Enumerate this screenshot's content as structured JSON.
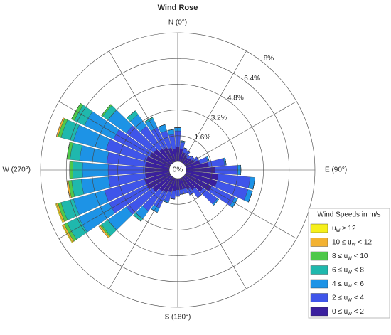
{
  "chart_data": {
    "type": "windrose",
    "title": "Wind Rose",
    "legend_title": "Wind Speeds in m/s",
    "legend_position": "lower right",
    "rlim": [
      0,
      8
    ],
    "rticks": [
      {
        "value": 0,
        "label": "0%"
      },
      {
        "value": 1.6,
        "label": "1.6%"
      },
      {
        "value": 3.2,
        "label": "3.2%"
      },
      {
        "value": 4.8,
        "label": "4.8%"
      },
      {
        "value": 6.4,
        "label": "6.4%"
      },
      {
        "value": 8,
        "label": "8%"
      }
    ],
    "theta_labels": [
      {
        "value": 0,
        "label": "N (0°)"
      },
      {
        "value": 90,
        "label": "E (90°)"
      },
      {
        "value": 180,
        "label": "S (180°)"
      },
      {
        "value": 270,
        "label": "W (270°)"
      }
    ],
    "series": [
      {
        "name": "0 ≤ uw < 2",
        "color": "#3a1f9e",
        "values": [
          0.9,
          0.8,
          0.6,
          0.5,
          0.4,
          0.5,
          0.6,
          0.9,
          1.4,
          1.8,
          2.0,
          2.0,
          1.8,
          1.4,
          1.0,
          0.8,
          0.7,
          0.7,
          0.7,
          0.8,
          0.9,
          1.0,
          1.1,
          1.4,
          1.6,
          1.6,
          1.5,
          1.5,
          1.5,
          1.5,
          1.4,
          1.3,
          1.1,
          1.0,
          0.9,
          0.8
        ]
      },
      {
        "name": "2 ≤ uw < 4",
        "color": "#3f55ea",
        "values": [
          1.0,
          0.4,
          0.3,
          0.3,
          0.2,
          0.2,
          0.3,
          0.5,
          1.0,
          1.4,
          2.0,
          2.0,
          1.6,
          1.1,
          0.6,
          0.4,
          0.3,
          0.3,
          0.4,
          0.5,
          0.6,
          1.1,
          1.5,
          2.0,
          2.6,
          2.6,
          2.3,
          2.3,
          2.4,
          2.6,
          2.5,
          2.1,
          1.7,
          1.4,
          1.1,
          0.9
        ]
      },
      {
        "name": "4 ≤ uw < 6",
        "color": "#1d93e6",
        "values": [
          0.2,
          0.1,
          0,
          0,
          0,
          0,
          0,
          0.1,
          0.1,
          0.2,
          0.3,
          0.3,
          0.2,
          0.1,
          0,
          0,
          0,
          0,
          0,
          0,
          0.1,
          0.3,
          0.6,
          1.4,
          2.1,
          2.0,
          1.7,
          1.6,
          1.7,
          2.1,
          2.0,
          1.4,
          0.9,
          0.6,
          0.4,
          0.3
        ]
      },
      {
        "name": "6 ≤ uw < 8",
        "color": "#1fb8ad",
        "values": [
          0,
          0,
          0,
          0,
          0,
          0,
          0,
          0,
          0,
          0,
          0,
          0,
          0,
          0,
          0,
          0,
          0,
          0,
          0,
          0,
          0,
          0,
          0.2,
          0.5,
          0.8,
          0.8,
          0.6,
          0.6,
          0.6,
          0.8,
          0.7,
          0.4,
          0.3,
          0.1,
          0,
          0
        ]
      },
      {
        "name": "8 ≤ uw < 10",
        "color": "#4ec84a",
        "values": [
          0,
          0,
          0,
          0,
          0,
          0,
          0,
          0,
          0,
          0,
          0,
          0,
          0,
          0,
          0,
          0,
          0,
          0,
          0,
          0,
          0,
          0,
          0,
          0.1,
          0.2,
          0.2,
          0.2,
          0.2,
          0.2,
          0.2,
          0.2,
          0.1,
          0,
          0,
          0,
          0
        ]
      },
      {
        "name": "10 ≤ uw < 12",
        "color": "#f3b232",
        "values": [
          0,
          0,
          0,
          0,
          0,
          0,
          0,
          0,
          0,
          0,
          0,
          0,
          0,
          0,
          0,
          0,
          0,
          0,
          0,
          0,
          0,
          0,
          0,
          0.1,
          0.1,
          0.1,
          0.1,
          0,
          0,
          0.1,
          0,
          0,
          0,
          0,
          0,
          0
        ]
      },
      {
        "name": "uw ≥ 12",
        "color": "#f6ef1b",
        "values": [
          0,
          0,
          0,
          0,
          0,
          0,
          0,
          0,
          0,
          0,
          0,
          0,
          0,
          0,
          0,
          0,
          0,
          0,
          0,
          0,
          0,
          0,
          0,
          0,
          0.05,
          0.05,
          0,
          0,
          0,
          0,
          0,
          0,
          0,
          0,
          0,
          0
        ]
      }
    ]
  }
}
